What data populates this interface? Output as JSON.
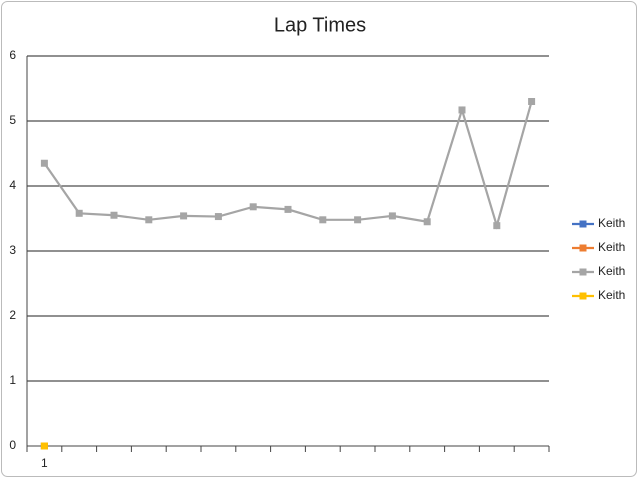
{
  "chart_data": {
    "type": "line",
    "title": "Lap Times",
    "categories": [
      "1",
      null,
      null,
      null,
      null,
      null,
      null,
      null,
      null,
      null,
      null,
      null,
      null,
      null,
      null
    ],
    "series": [
      {
        "name": "Keith",
        "color": "#4472c4",
        "values": [
          0,
          null,
          null,
          null,
          null,
          null,
          null,
          null,
          null,
          null,
          null,
          null,
          null,
          null,
          null
        ]
      },
      {
        "name": "Keith",
        "color": "#ed7d31",
        "values": [
          0,
          null,
          null,
          null,
          null,
          null,
          null,
          null,
          null,
          null,
          null,
          null,
          null,
          null,
          null
        ]
      },
      {
        "name": "Keith",
        "color": "#a5a5a5",
        "values": [
          4.35,
          3.58,
          3.55,
          3.48,
          3.54,
          3.53,
          3.68,
          3.64,
          3.48,
          3.48,
          3.54,
          3.45,
          5.17,
          3.39,
          5.3
        ]
      },
      {
        "name": "Keith",
        "color": "#ffc000",
        "values": [
          0,
          null,
          null,
          null,
          null,
          null,
          null,
          null,
          null,
          null,
          null,
          null,
          null,
          null,
          null
        ]
      }
    ],
    "ylim": [
      0,
      6
    ],
    "yticks": [
      0,
      1,
      2,
      3,
      4,
      5,
      6
    ],
    "grid": true,
    "legend": "right"
  }
}
